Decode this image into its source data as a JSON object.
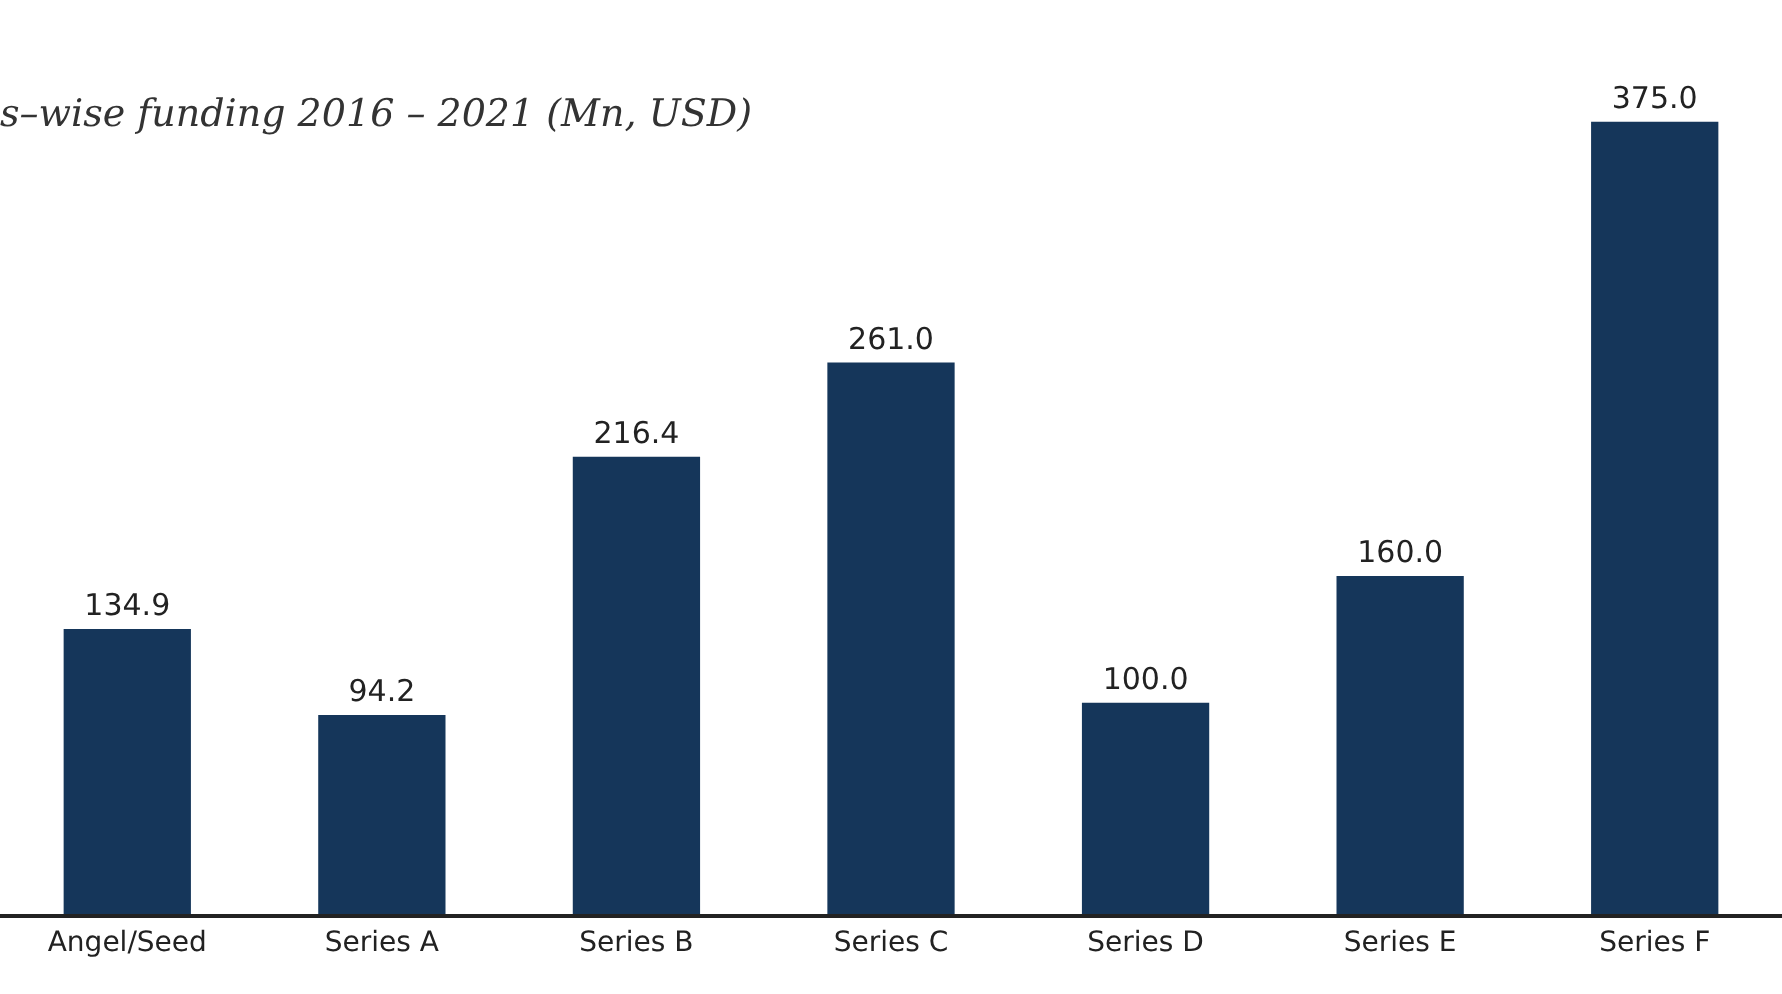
{
  "chart_data": {
    "type": "bar",
    "title": "s–wise funding 2016 – 2021 (Mn, USD)",
    "categories": [
      "Angel/Seed",
      "Series A",
      "Series B",
      "Series C",
      "Series D",
      "Series E",
      "Series F"
    ],
    "values": [
      134.9,
      94.2,
      216.4,
      261.0,
      100.0,
      160.0,
      375.0
    ],
    "value_labels": [
      "134.9",
      "94.2",
      "216.4",
      "261.0",
      "100.0",
      "160.0",
      "375.0"
    ],
    "color": "#15365a",
    "grid": false,
    "legend": false
  }
}
